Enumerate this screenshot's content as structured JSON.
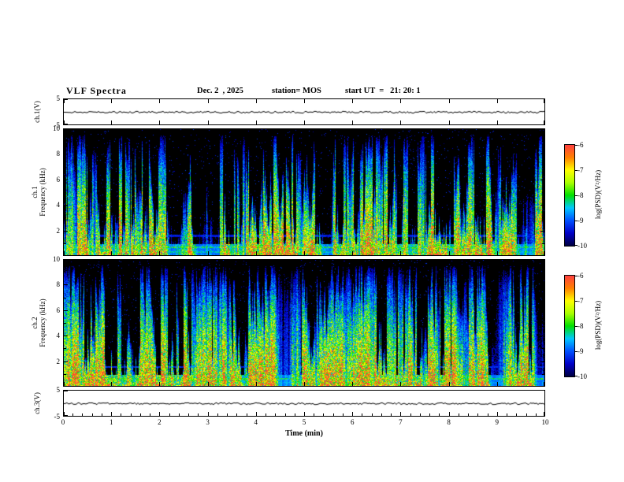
{
  "header": {
    "title": "VLF Spectra",
    "date": "Dec. 2  , 2025",
    "station": "station= MOS",
    "start_ut": "start UT  =   21: 20: 1"
  },
  "xaxis": {
    "label": "Time (min)",
    "ticks": [
      "0",
      "1",
      "2",
      "3",
      "4",
      "5",
      "6",
      "7",
      "8",
      "9",
      "10"
    ],
    "range": [
      0,
      10
    ]
  },
  "colormap": {
    "stops_low_to_high": [
      "#000041",
      "#0000c8",
      "#0050ff",
      "#00c8ff",
      "#00e000",
      "#aaff00",
      "#ffff00",
      "#ff8000",
      "#ff4040"
    ]
  },
  "chart_data": [
    {
      "type": "line",
      "name": "ch1-voltage",
      "ylabel": "ch.1(V)",
      "yticks": [
        "5",
        "-5"
      ],
      "ylim": [
        -5,
        5
      ],
      "xlim": [
        0,
        10
      ],
      "series_description": "near-zero flat voltage trace over 10 minutes",
      "render": {
        "seed": 11,
        "jitter": 1.2
      }
    },
    {
      "type": "heatmap",
      "name": "ch1-spectrogram",
      "ylabel_line1": "ch.1",
      "ylabel_line2": "Frequency (kHz)",
      "yticks": [
        "10",
        "8",
        "6",
        "4",
        "2"
      ],
      "yticks_minor": [
        1,
        3,
        5,
        7,
        9
      ],
      "ylim": [
        0,
        10
      ],
      "xlim": [
        0,
        10
      ],
      "values_description": "broadband impulsive VLF sferics 0-9.5 kHz on black background; strongest power (green/yellow/red) below 2 kHz, blue speckle at streak tips; persistent narrow line near 0.6 kHz; sparse mid-band 2.5-5 kHz",
      "colorbar": {
        "label": "log(PSD)(V²/Hz)",
        "ticks": [
          "-6",
          "-7",
          "-8",
          "-9",
          "-10"
        ],
        "range": [
          -6,
          -10
        ]
      },
      "render": {
        "seed": 1234,
        "gap_prob": 0.12,
        "burst_prob": 0.09,
        "base_env": 0.5,
        "base_amp": 0.55,
        "hlines": [
          {
            "f": 0.06,
            "i": 0.5
          },
          {
            "f": 0.02,
            "i": 0.4
          },
          {
            "f": 0.15,
            "i": 0.18
          }
        ]
      }
    },
    {
      "type": "heatmap",
      "name": "ch2-spectrogram",
      "ylabel_line1": "ch.2",
      "ylabel_line2": "Frequency (kHz)",
      "yticks": [
        "10",
        "8",
        "6",
        "4",
        "2"
      ],
      "yticks_minor": [
        1,
        3,
        5,
        7,
        9
      ],
      "ylim": [
        0,
        10
      ],
      "xlim": [
        0,
        10
      ],
      "values_description": "denser broadband VLF sferics than ch.1, green/yellow cores up to 8-9 kHz, blue tips, bright low-frequency band below 1 kHz, narrow line near 0.55 kHz",
      "colorbar": {
        "label": "log(PSD)(V²/Hz)",
        "ticks": [
          "-6",
          "-7",
          "-8",
          "-9",
          "-10"
        ],
        "range": [
          -6,
          -10
        ]
      },
      "render": {
        "seed": 987,
        "gap_prob": 0.05,
        "burst_prob": 0.14,
        "base_env": 0.72,
        "base_amp": 0.62,
        "hlines": [
          {
            "f": 0.055,
            "i": 0.5
          },
          {
            "f": 0.145,
            "i": 0.2
          },
          {
            "f": 0.02,
            "i": 0.35
          }
        ]
      }
    },
    {
      "type": "line",
      "name": "ch3-voltage",
      "ylabel": "ch.3(V)",
      "yticks": [
        "5",
        "-5"
      ],
      "ylim": [
        -5,
        5
      ],
      "xlim": [
        0,
        10
      ],
      "series_description": "near-zero flat voltage trace over 10 minutes",
      "render": {
        "seed": 77,
        "jitter": 1.2
      }
    }
  ]
}
